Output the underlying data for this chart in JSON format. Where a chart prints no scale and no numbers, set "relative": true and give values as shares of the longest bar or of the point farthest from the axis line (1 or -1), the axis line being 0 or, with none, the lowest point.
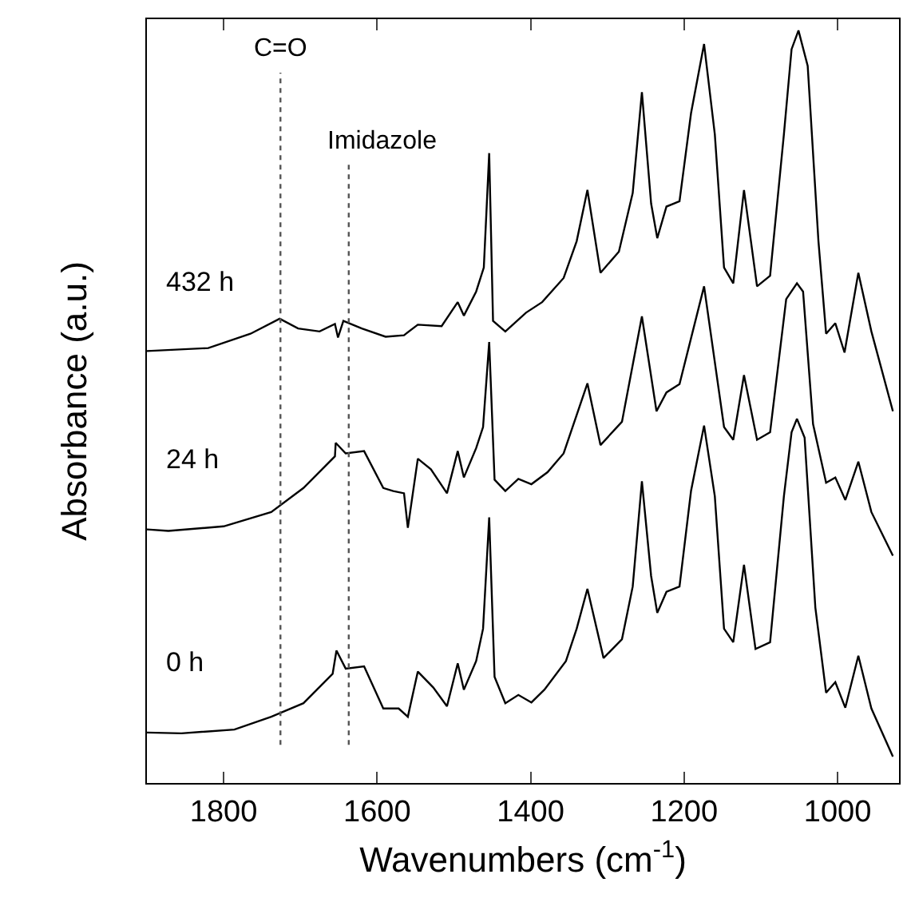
{
  "chart_data": {
    "type": "line",
    "relative": true,
    "xlabel": "Wavenumbers (cm$^{-1}$)",
    "ylabel": "Absorbance (a.u.)",
    "xlim": [
      1900,
      920
    ],
    "xticks": [
      1800,
      1600,
      1400,
      1200,
      1000
    ],
    "x": [
      1900,
      1820,
      1765,
      1727,
      1703,
      1675,
      1655,
      1651,
      1644,
      1620,
      1589,
      1565,
      1547,
      1516,
      1495,
      1487,
      1471,
      1461,
      1454,
      1449,
      1433,
      1406,
      1385,
      1357,
      1340,
      1326,
      1309,
      1285,
      1267,
      1255,
      1243,
      1235,
      1223,
      1206,
      1191,
      1174,
      1160,
      1148,
      1136,
      1122,
      1105,
      1088,
      1070,
      1060,
      1051,
      1039,
      1025,
      1015,
      1003,
      991,
      973,
      956,
      928
    ],
    "series": [
      {
        "name": "432 h",
        "color": "#000000",
        "values": [
          0.574,
          0.578,
          0.597,
          0.617,
          0.604,
          0.6,
          0.61,
          0.592,
          0.614,
          0.604,
          0.593,
          0.595,
          0.609,
          0.607,
          0.639,
          0.621,
          0.653,
          0.685,
          0.837,
          0.614,
          0.6,
          0.625,
          0.639,
          0.671,
          0.72,
          0.788,
          0.678,
          0.706,
          0.784,
          0.918,
          0.77,
          0.724,
          0.766,
          0.773,
          0.89,
          0.982,
          0.862,
          0.685,
          0.664,
          0.788,
          0.66,
          0.674,
          0.862,
          0.975,
          1.0,
          0.953,
          0.72,
          0.597,
          0.611,
          0.572,
          0.678,
          0.6,
          0.494
        ]
      },
      {
        "name": "24 h",
        "color": "#000000",
        "x": [
          1900,
          1872,
          1800,
          1738,
          1696,
          1655,
          1654,
          1641,
          1617,
          1592,
          1579,
          1565,
          1560,
          1547,
          1530,
          1509,
          1495,
          1487,
          1471,
          1462,
          1454,
          1447,
          1433,
          1416,
          1399,
          1378,
          1357,
          1326,
          1309,
          1281,
          1255,
          1236,
          1223,
          1206,
          1174,
          1148,
          1136,
          1122,
          1105,
          1088,
          1067,
          1053,
          1045,
          1032,
          1015,
          1003,
          990,
          973,
          956,
          928
        ],
        "values": [
          0.337,
          0.335,
          0.341,
          0.36,
          0.392,
          0.434,
          0.452,
          0.438,
          0.441,
          0.392,
          0.388,
          0.385,
          0.339,
          0.431,
          0.417,
          0.385,
          0.441,
          0.406,
          0.445,
          0.473,
          0.586,
          0.403,
          0.388,
          0.404,
          0.397,
          0.413,
          0.438,
          0.531,
          0.449,
          0.48,
          0.62,
          0.494,
          0.519,
          0.53,
          0.66,
          0.473,
          0.456,
          0.542,
          0.456,
          0.466,
          0.643,
          0.664,
          0.653,
          0.477,
          0.399,
          0.406,
          0.376,
          0.427,
          0.36,
          0.302
        ]
      },
      {
        "name": "0 h",
        "color": "#000000",
        "x": [
          1900,
          1855,
          1786,
          1738,
          1696,
          1658,
          1653,
          1641,
          1617,
          1592,
          1572,
          1560,
          1547,
          1527,
          1509,
          1495,
          1487,
          1471,
          1462,
          1454,
          1447,
          1433,
          1416,
          1399,
          1382,
          1354,
          1340,
          1326,
          1305,
          1281,
          1267,
          1255,
          1243,
          1235,
          1223,
          1206,
          1191,
          1174,
          1160,
          1148,
          1136,
          1122,
          1107,
          1088,
          1070,
          1060,
          1053,
          1043,
          1029,
          1015,
          1003,
          990,
          973,
          956,
          928
        ],
        "values": [
          0.067,
          0.066,
          0.071,
          0.088,
          0.106,
          0.145,
          0.176,
          0.152,
          0.155,
          0.099,
          0.099,
          0.088,
          0.148,
          0.127,
          0.102,
          0.159,
          0.124,
          0.162,
          0.205,
          0.353,
          0.141,
          0.106,
          0.117,
          0.107,
          0.124,
          0.162,
          0.205,
          0.258,
          0.166,
          0.191,
          0.261,
          0.401,
          0.275,
          0.226,
          0.254,
          0.261,
          0.388,
          0.475,
          0.381,
          0.205,
          0.187,
          0.29,
          0.178,
          0.187,
          0.381,
          0.466,
          0.484,
          0.459,
          0.233,
          0.12,
          0.134,
          0.1,
          0.169,
          0.099,
          0.035
        ]
      }
    ],
    "ref_lines": [
      {
        "axis": "x",
        "value": 1726,
        "label": "C=O",
        "color": "#555555",
        "line_style": "dotted"
      },
      {
        "axis": "x",
        "value": 1637,
        "label": "Imidazole",
        "color": "#555555",
        "line_style": "dotted"
      }
    ]
  }
}
